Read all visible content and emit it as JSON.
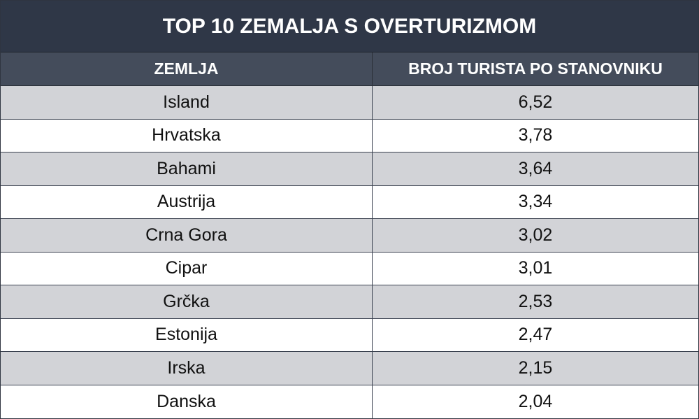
{
  "chart_data": {
    "type": "table",
    "title": "TOP 10 ZEMALJA S OVERTURIZMOM",
    "columns": [
      "ZEMLJA",
      "BROJ TURISTA PO STANOVNIKU"
    ],
    "rows": [
      {
        "country": "Island",
        "value": "6,52"
      },
      {
        "country": "Hrvatska",
        "value": "3,78"
      },
      {
        "country": "Bahami",
        "value": "3,64"
      },
      {
        "country": "Austrija",
        "value": "3,34"
      },
      {
        "country": "Crna Gora",
        "value": "3,02"
      },
      {
        "country": "Cipar",
        "value": "3,01"
      },
      {
        "country": "Grčka",
        "value": "2,53"
      },
      {
        "country": "Estonija",
        "value": "2,47"
      },
      {
        "country": "Irska",
        "value": "2,15"
      },
      {
        "country": "Danska",
        "value": "2,04"
      }
    ]
  },
  "colors": {
    "title_bg": "#2f3747",
    "header_bg": "#444c5b",
    "row_shaded": "#d2d3d7",
    "row_plain": "#ffffff"
  }
}
